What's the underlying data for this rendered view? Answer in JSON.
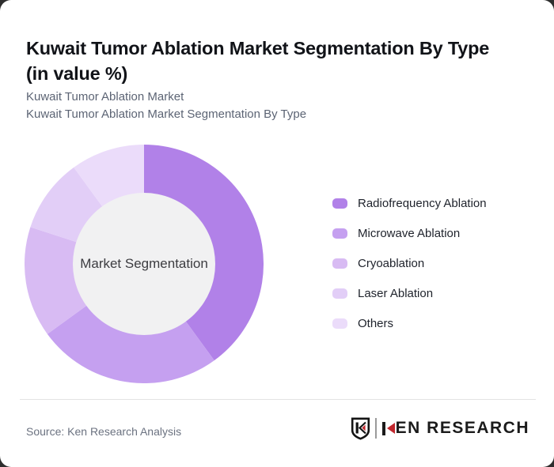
{
  "background": {
    "page_color": "#2e2e2e",
    "card_color": "#ffffff"
  },
  "header": {
    "title_line1": "Kuwait Tumor Ablation Market Segmentation By Type",
    "title_line2": "(in value %)",
    "subtitle_line1": "Kuwait Tumor Ablation Market",
    "subtitle_line2": "Kuwait Tumor Ablation Market Segmentation By Type"
  },
  "chart_data": {
    "type": "pie",
    "donut": true,
    "title": "Kuwait Tumor Ablation Market Segmentation By Type (in value %)",
    "center_label": "Market Segmentation",
    "categories": [
      "Radiofrequency Ablation",
      "Microwave Ablation",
      "Cryoablation",
      "Laser Ablation",
      "Others"
    ],
    "values": [
      40,
      25,
      15,
      10,
      10
    ],
    "unit": "%",
    "colors": [
      "#b181e8",
      "#c5a0f0",
      "#d8bbf3",
      "#e2cef7",
      "#ebdcfa"
    ],
    "inner_circle_color": "#f1f1f2",
    "start_angle_deg": 0,
    "clockwise": true,
    "legend_position": "right"
  },
  "footer": {
    "source": "Source: Ken Research Analysis",
    "logo_text_rest": "EN RESEARCH",
    "logo_red": "#c1272d",
    "logo_dark": "#1b1b1b"
  }
}
